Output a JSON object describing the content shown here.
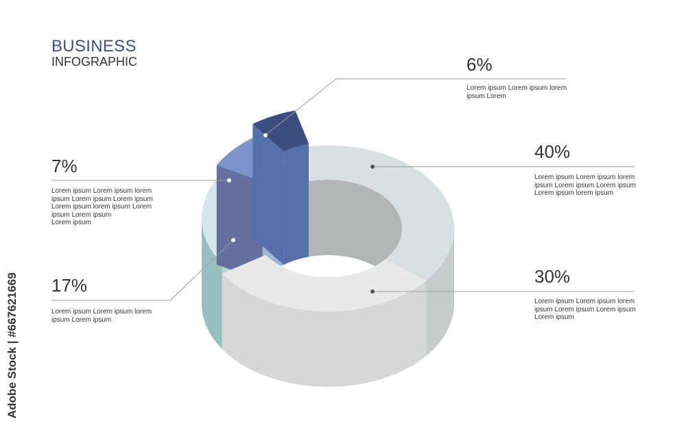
{
  "header": {
    "title": "BUSINESS",
    "subtitle": "INFOGRAPHIC"
  },
  "watermark": "Adobe Stock | #667621669",
  "chart_data": {
    "type": "pie",
    "style": "3d-donut",
    "title": "",
    "categories": [
      "40%",
      "30%",
      "17%",
      "7%",
      "6%"
    ],
    "values": [
      40,
      30,
      17,
      7,
      6
    ],
    "colors": {
      "40": {
        "top": "#d8e1e1",
        "wall": "#c9cccc",
        "inner": "#b3b6b6",
        "side": "#a6a9a9"
      },
      "30": {
        "top": "#e8e9e9",
        "wall": "#d6d8d8",
        "inner": "#c2c4c4",
        "side": "#bfc2c2"
      },
      "17": {
        "top": "#d3e6ea",
        "wall": "#97bfbf",
        "inner": "#b7d3d6",
        "side": "#acd8d8"
      },
      "7": {
        "top": "#7e95cb",
        "wall": "#64709e",
        "inner": "#9eb8da",
        "side": "#64709e"
      },
      "6": {
        "top": "#3c4d80",
        "wall": "#2b3a5e",
        "inner": "#5570ab",
        "side": "#5570ab"
      }
    },
    "labels": [
      {
        "value": "6%",
        "text": [
          "Lorem ipsum Lorem ipsum lorem",
          "ipsum Lorem"
        ]
      },
      {
        "value": "40%",
        "text": [
          "Lorem ipsum Lorem ipsum lorem",
          "ipsum Lorem ipsum Lorem ipsum",
          "Lorem ipsum lorem ipsum"
        ]
      },
      {
        "value": "30%",
        "text": [
          "Lorem ipsum Lorem ipsum lorem",
          "ipsum Lorem ipsum Lorem ipsum",
          "Lorem ipsum"
        ]
      },
      {
        "value": "7%",
        "text": [
          "Lorem ipsum Lorem ipsum lorem",
          "ipsum Lorem ipsum Lorem ipsum",
          "Lorem ipsum lorem ipsum Lorem",
          "ipsum Lorem ipsum",
          "Lorem ipsum"
        ]
      },
      {
        "value": "17%",
        "text": [
          "Lorem ipsum Lorem ipsum lorem",
          "ipsum Lorem ipsum"
        ]
      }
    ]
  }
}
